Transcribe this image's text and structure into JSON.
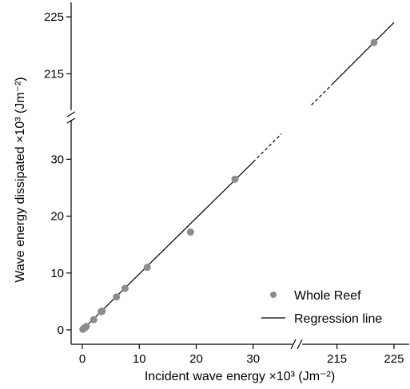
{
  "chart_data": {
    "type": "scatter",
    "title": "",
    "xlabel": "Incident wave energy ×10³ (Jm⁻²)",
    "ylabel": "Wave energy dissipated ×10³ (Jm⁻²)",
    "axis_breaks": {
      "x": {
        "lower_range": [
          0,
          30
        ],
        "upper_range": [
          210,
          225
        ]
      },
      "y": {
        "lower_range": [
          0,
          30
        ],
        "upper_range": [
          210,
          225
        ]
      }
    },
    "x_ticks": [
      {
        "value": 0,
        "label": "0"
      },
      {
        "value": 10,
        "label": "10"
      },
      {
        "value": 20,
        "label": "20"
      },
      {
        "value": 30,
        "label": "30"
      },
      {
        "value": 215,
        "label": "215"
      },
      {
        "value": 225,
        "label": "225"
      }
    ],
    "y_ticks": [
      {
        "value": 0,
        "label": "0"
      },
      {
        "value": 10,
        "label": "10"
      },
      {
        "value": 20,
        "label": "20"
      },
      {
        "value": 30,
        "label": "30"
      },
      {
        "value": 215,
        "label": "215"
      },
      {
        "value": 225,
        "label": "225"
      }
    ],
    "series": [
      {
        "name": "Whole Reef",
        "kind": "points",
        "color": "#8c8c8c",
        "points": [
          {
            "x": 0.1,
            "y": 0.1
          },
          {
            "x": 0.3,
            "y": 0.3
          },
          {
            "x": 0.5,
            "y": 0.4
          },
          {
            "x": 0.7,
            "y": 0.6
          },
          {
            "x": 2.0,
            "y": 1.8
          },
          {
            "x": 3.3,
            "y": 3.2
          },
          {
            "x": 3.5,
            "y": 3.3
          },
          {
            "x": 6.0,
            "y": 5.8
          },
          {
            "x": 7.5,
            "y": 7.3
          },
          {
            "x": 11.4,
            "y": 11.0
          },
          {
            "x": 19.0,
            "y": 17.2
          },
          {
            "x": 26.8,
            "y": 26.5
          },
          {
            "x": 221.5,
            "y": 220.5
          }
        ]
      },
      {
        "name": "Regression line",
        "kind": "line",
        "color": "#000000",
        "segments": [
          {
            "style": "solid",
            "from": {
              "x": 0,
              "y": 0
            },
            "to": {
              "x": 30,
              "y": 29.5
            }
          },
          {
            "style": "dashed",
            "from": {
              "x": 30,
              "y": 29.5
            },
            "to": {
              "x": 35,
              "y": 34.5
            }
          },
          {
            "style": "dashed",
            "from": {
              "x": 210.5,
              "y": 209.5
            },
            "to": {
              "x": 214,
              "y": 213
            }
          },
          {
            "style": "solid",
            "from": {
              "x": 214,
              "y": 213
            },
            "to": {
              "x": 225,
              "y": 224
            }
          }
        ]
      }
    ],
    "legend": {
      "placement": "bottom-right",
      "entries": [
        {
          "label": "Whole Reef",
          "marker": "point"
        },
        {
          "label": "Regression line",
          "marker": "line"
        }
      ]
    },
    "grid": false
  }
}
